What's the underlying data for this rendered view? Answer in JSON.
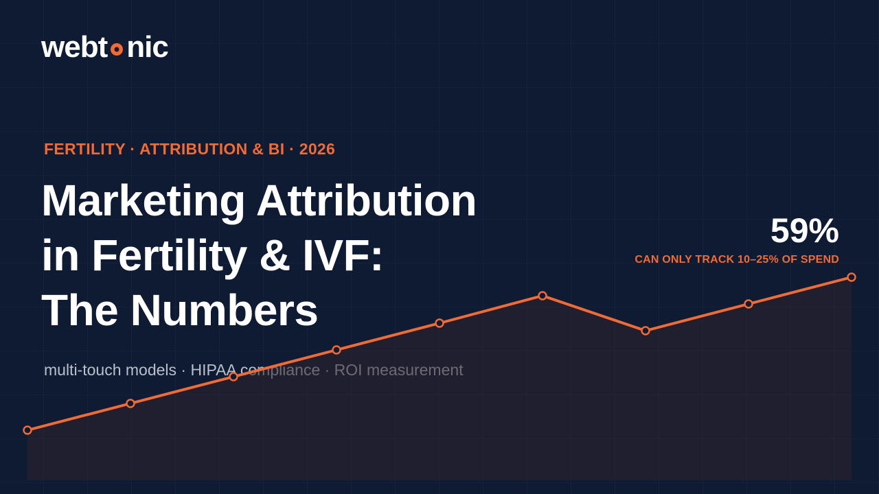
{
  "logo": {
    "before": "webt",
    "after": "nic"
  },
  "eyebrow": "FERTILITY · ATTRIBUTION & BI · 2026",
  "title_lines": [
    "Marketing Attribution",
    "in Fertility & IVF:",
    "The Numbers"
  ],
  "subtitle": "multi-touch models · HIPAA compliance · ROI measurement",
  "stat": {
    "value": "59%",
    "label": "CAN ONLY TRACK 10–25% OF SPEND"
  }
}
